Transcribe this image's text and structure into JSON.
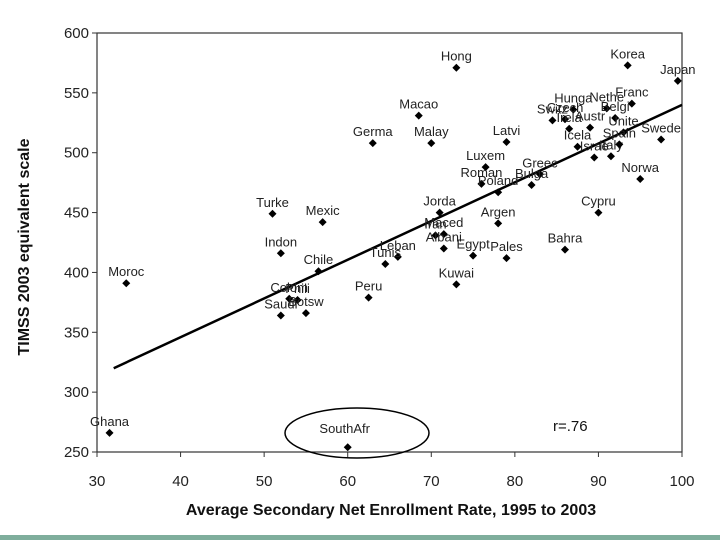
{
  "chart_data": {
    "type": "scatter",
    "title": "",
    "xlabel": "Average Secondary Net Enrollment Rate, 1995 to 2003",
    "ylabel": "TIMSS 2003 equivalent scale",
    "xlim": [
      30,
      100
    ],
    "ylim": [
      250,
      600
    ],
    "xticks": [
      "30",
      "40",
      "50",
      "60",
      "70",
      "80",
      "90",
      "100"
    ],
    "yticks": [
      "250",
      "300",
      "350",
      "400",
      "450",
      "500",
      "550",
      "600"
    ],
    "annotation": "r=.76",
    "highlight_label": "SouthAfr",
    "trendline": {
      "x": [
        32,
        100
      ],
      "y": [
        320,
        540
      ]
    },
    "points": [
      {
        "label": "Hong",
        "x": 73,
        "y": 571
      },
      {
        "label": "Korea",
        "x": 93.5,
        "y": 573
      },
      {
        "label": "Japan",
        "x": 99.5,
        "y": 560
      },
      {
        "label": "Franc",
        "x": 94,
        "y": 541
      },
      {
        "label": "Macao",
        "x": 68.5,
        "y": 531
      },
      {
        "label": "Germa",
        "x": 63,
        "y": 508
      },
      {
        "label": "Malay",
        "x": 70,
        "y": 508
      },
      {
        "label": "Latvi",
        "x": 79,
        "y": 509
      },
      {
        "label": "Swede",
        "x": 97.5,
        "y": 511
      },
      {
        "label": "Hunga",
        "x": 87,
        "y": 536
      },
      {
        "label": "Nethe",
        "x": 91,
        "y": 537
      },
      {
        "label": "Switz",
        "x": 84.5,
        "y": 527
      },
      {
        "label": "Czech",
        "x": 86,
        "y": 528
      },
      {
        "label": "Belgi",
        "x": 92,
        "y": 529
      },
      {
        "label": "Irela",
        "x": 86.5,
        "y": 520
      },
      {
        "label": "Austr",
        "x": 89,
        "y": 521
      },
      {
        "label": "Unite",
        "x": 93,
        "y": 517
      },
      {
        "label": "Icela",
        "x": 87.5,
        "y": 505
      },
      {
        "label": "Israe",
        "x": 89.5,
        "y": 496
      },
      {
        "label": "Italy",
        "x": 91.5,
        "y": 497
      },
      {
        "label": "Spain",
        "x": 92.5,
        "y": 507
      },
      {
        "label": "Norwa",
        "x": 95,
        "y": 478
      },
      {
        "label": "Luxem",
        "x": 76.5,
        "y": 488
      },
      {
        "label": "Greec",
        "x": 83,
        "y": 482
      },
      {
        "label": "Roman",
        "x": 76,
        "y": 474
      },
      {
        "label": "Poland",
        "x": 78,
        "y": 467
      },
      {
        "label": "Bulga",
        "x": 82,
        "y": 473
      },
      {
        "label": "Cypru",
        "x": 90,
        "y": 450
      },
      {
        "label": "Turke",
        "x": 51,
        "y": 449
      },
      {
        "label": "Mexic",
        "x": 57,
        "y": 442
      },
      {
        "label": "Jorda",
        "x": 71,
        "y": 450
      },
      {
        "label": "Maced",
        "x": 71.5,
        "y": 432
      },
      {
        "label": "Argen",
        "x": 78,
        "y": 441
      },
      {
        "label": "Iran",
        "x": 70.5,
        "y": 431
      },
      {
        "label": "Bahra",
        "x": 86,
        "y": 419
      },
      {
        "label": "Indon",
        "x": 52,
        "y": 416
      },
      {
        "label": "Leban",
        "x": 66,
        "y": 413
      },
      {
        "label": "Albani",
        "x": 71.5,
        "y": 420
      },
      {
        "label": "Egypt",
        "x": 75,
        "y": 414
      },
      {
        "label": "Pales",
        "x": 79,
        "y": 412
      },
      {
        "label": "Tunis",
        "x": 64.5,
        "y": 407
      },
      {
        "label": "Chile",
        "x": 56.5,
        "y": 401
      },
      {
        "label": "Kuwai",
        "x": 73,
        "y": 390
      },
      {
        "label": "Moroc",
        "x": 33.5,
        "y": 391
      },
      {
        "label": "Peru",
        "x": 62.5,
        "y": 379
      },
      {
        "label": "Colom",
        "x": 53,
        "y": 378
      },
      {
        "label": "Phili",
        "x": 54,
        "y": 377
      },
      {
        "label": "Saudi",
        "x": 52,
        "y": 364
      },
      {
        "label": "Botsw",
        "x": 55,
        "y": 366
      },
      {
        "label": "Ghana",
        "x": 31.5,
        "y": 266
      },
      {
        "label": "SouthAfr",
        "x": 60,
        "y": 254
      }
    ]
  }
}
